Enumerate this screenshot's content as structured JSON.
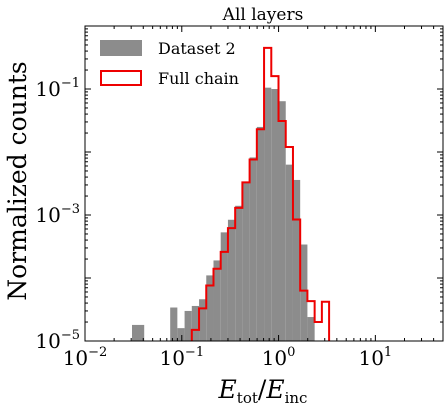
{
  "chart_data": {
    "type": "histogram",
    "title": "All layers",
    "xlabel_main": "E",
    "xlabel_num_sub": "tot",
    "xlabel_den_sub": "inc",
    "xlabel_slash": "/",
    "ylabel": "Normalized counts",
    "x_scale": "log",
    "y_scale": "log",
    "xlim": [
      0.01,
      50
    ],
    "ylim": [
      1e-05,
      1.0
    ],
    "x_ticks": [
      {
        "value": 0.01,
        "base": "10",
        "exp": "−2"
      },
      {
        "value": 0.1,
        "base": "10",
        "exp": "−1"
      },
      {
        "value": 1,
        "base": "10",
        "exp": "0"
      },
      {
        "value": 10,
        "base": "10",
        "exp": "1"
      }
    ],
    "y_ticks": [
      {
        "value": 1e-05,
        "base": "10",
        "exp": "−5"
      },
      {
        "value": 0.001,
        "base": "10",
        "exp": "−3"
      },
      {
        "value": 0.1,
        "base": "10",
        "exp": "−1"
      }
    ],
    "legend_position": "top-left",
    "legend": [
      {
        "label": "Dataset 2",
        "style": "filled",
        "color": "#8c8c8c"
      },
      {
        "label": "Full chain",
        "style": "step",
        "color": "#ee0000"
      }
    ],
    "series": [
      {
        "name": "Dataset 2",
        "style": "filled",
        "color": "#8c8c8c",
        "bins": [
          {
            "lo": 0.0306,
            "hi": 0.0409,
            "y": 1.8e-05
          },
          {
            "lo": 0.0759,
            "hi": 0.09,
            "y": 3.4e-05
          },
          {
            "lo": 0.09,
            "hi": 0.1069,
            "y": 1.6e-05
          },
          {
            "lo": 0.1069,
            "hi": 0.1269,
            "y": 3e-05
          },
          {
            "lo": 0.1269,
            "hi": 0.1508,
            "y": 3.6e-05
          },
          {
            "lo": 0.1508,
            "hi": 0.179,
            "y": 4.6e-05
          },
          {
            "lo": 0.179,
            "hi": 0.2126,
            "y": 0.00011
          },
          {
            "lo": 0.2126,
            "hi": 0.2524,
            "y": 0.00019
          },
          {
            "lo": 0.2524,
            "hi": 0.2998,
            "y": 0.00053
          },
          {
            "lo": 0.2998,
            "hi": 0.3561,
            "y": 0.00084
          },
          {
            "lo": 0.3561,
            "hi": 0.4228,
            "y": 0.0014
          },
          {
            "lo": 0.4228,
            "hi": 0.5021,
            "y": 0.0033
          },
          {
            "lo": 0.5021,
            "hi": 0.5963,
            "y": 0.0082
          },
          {
            "lo": 0.5963,
            "hi": 0.7081,
            "y": 0.025
          },
          {
            "lo": 0.7081,
            "hi": 0.8409,
            "y": 0.105
          },
          {
            "lo": 0.8409,
            "hi": 0.9986,
            "y": 0.1
          },
          {
            "lo": 0.9986,
            "hi": 1.186,
            "y": 0.064
          },
          {
            "lo": 1.186,
            "hi": 1.4084,
            "y": 0.0063
          },
          {
            "lo": 1.4084,
            "hi": 1.6726,
            "y": 0.0036
          },
          {
            "lo": 1.6726,
            "hi": 1.9863,
            "y": 0.00034
          },
          {
            "lo": 1.9863,
            "hi": 2.359,
            "y": 2.4e-05
          }
        ]
      },
      {
        "name": "Full chain",
        "style": "step",
        "color": "#ee0000",
        "edges": [
          0.1269,
          0.1508,
          0.179,
          0.2126,
          0.2524,
          0.2998,
          0.3561,
          0.4228,
          0.5021,
          0.5963,
          0.7081,
          0.8409,
          0.9986,
          1.186,
          1.4084,
          1.6726,
          1.9863,
          2.359,
          2.8015,
          3.3272
        ],
        "values": [
          1.5e-05,
          3.3e-05,
          7.6e-05,
          0.00014,
          0.00026,
          0.00062,
          0.0013,
          0.0033,
          0.0076,
          0.023,
          0.45,
          0.16,
          0.031,
          0.012,
          0.00085,
          6.3e-05,
          4.3e-05,
          2e-05,
          4.2e-05
        ]
      }
    ]
  }
}
